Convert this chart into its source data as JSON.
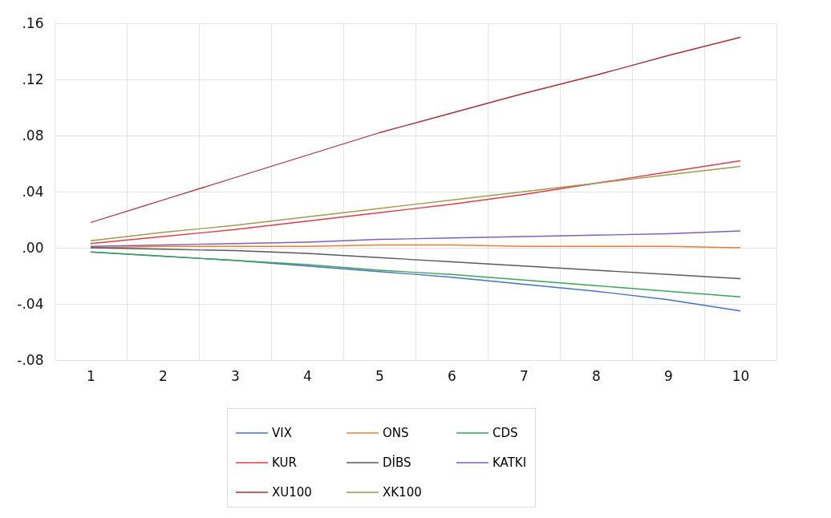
{
  "chart_data": {
    "type": "line",
    "categories": [
      "1",
      "2",
      "3",
      "4",
      "5",
      "6",
      "7",
      "8",
      "9",
      "10"
    ],
    "series": [
      {
        "name": "VIX",
        "color": "#4472c4",
        "values": [
          -0.003,
          -0.006,
          -0.009,
          -0.013,
          -0.017,
          -0.021,
          -0.026,
          -0.031,
          -0.037,
          -0.045
        ]
      },
      {
        "name": "ONS",
        "color": "#ed7d31",
        "values": [
          0.0,
          0.001,
          0.001,
          0.001,
          0.002,
          0.002,
          0.001,
          0.001,
          0.001,
          0.0
        ]
      },
      {
        "name": "CDS",
        "color": "#3ea35a",
        "values": [
          -0.003,
          -0.006,
          -0.009,
          -0.012,
          -0.016,
          -0.019,
          -0.023,
          -0.027,
          -0.031,
          -0.035
        ]
      },
      {
        "name": "KUR",
        "color": "#e03c4a",
        "values": [
          0.003,
          0.008,
          0.013,
          0.019,
          0.025,
          0.031,
          0.038,
          0.046,
          0.054,
          0.062
        ]
      },
      {
        "name": "DİBS",
        "color": "#595959",
        "values": [
          0.0,
          -0.001,
          -0.002,
          -0.004,
          -0.007,
          -0.01,
          -0.013,
          -0.016,
          -0.019,
          -0.022
        ]
      },
      {
        "name": "KATKI",
        "color": "#7f5fb8",
        "values": [
          0.001,
          0.002,
          0.003,
          0.004,
          0.006,
          0.007,
          0.008,
          0.009,
          0.01,
          0.012
        ]
      },
      {
        "name": "XU100",
        "color": "#a5303a",
        "values": [
          0.018,
          0.034,
          0.05,
          0.066,
          0.082,
          0.096,
          0.11,
          0.123,
          0.137,
          0.15
        ]
      },
      {
        "name": "XK100",
        "color": "#9e9a4e",
        "values": [
          0.005,
          0.011,
          0.016,
          0.022,
          0.028,
          0.034,
          0.04,
          0.046,
          0.052,
          0.058
        ]
      }
    ],
    "ylim": [
      -0.08,
      0.16
    ],
    "yticks": [
      {
        "value": -0.08,
        "label": "-.08"
      },
      {
        "value": -0.04,
        "label": "-.04"
      },
      {
        "value": 0,
        "label": ".00"
      },
      {
        "value": 0.04,
        "label": ".04"
      },
      {
        "value": 0.08,
        "label": ".08"
      },
      {
        "value": 0.12,
        "label": ".12"
      },
      {
        "value": 0.16,
        "label": ".16"
      }
    ],
    "grid": true,
    "legend": "bottom",
    "marker": "none",
    "line_style": "solid"
  }
}
